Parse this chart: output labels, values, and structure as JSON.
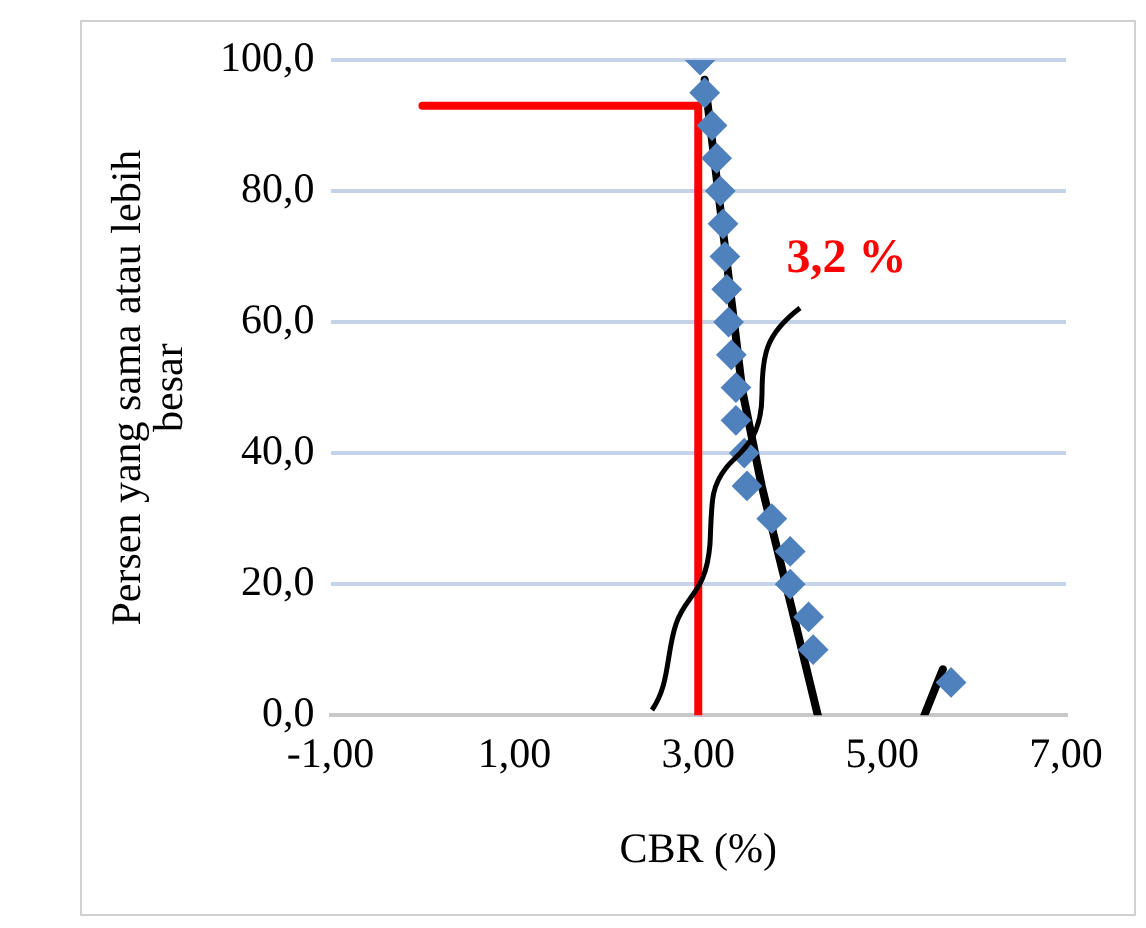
{
  "chart_data": {
    "type": "scatter",
    "xlabel": "CBR (%)",
    "ylabel": "Persen yang sama atau lebih besar",
    "xlim": [
      -1,
      7
    ],
    "xticks": [
      {
        "value": -1,
        "label": "-1,00"
      },
      {
        "value": 1,
        "label": "1,00"
      },
      {
        "value": 3,
        "label": "3,00"
      },
      {
        "value": 5,
        "label": "5,00"
      },
      {
        "value": 7,
        "label": "7,00"
      }
    ],
    "ylim": [
      0,
      100
    ],
    "yticks": [
      {
        "value": 0,
        "label": "0,0"
      },
      {
        "value": 20,
        "label": "20,0"
      },
      {
        "value": 40,
        "label": "40,0"
      },
      {
        "value": 60,
        "label": "60,0"
      },
      {
        "value": 80,
        "label": "80,0"
      },
      {
        "value": 100,
        "label": "100,0"
      }
    ],
    "grid": "y",
    "legend": false,
    "marker": "diamond",
    "annotations": [
      "3,2 %"
    ],
    "series": [
      {
        "color": "#4f81bd",
        "x": [
          3.02,
          3.07,
          3.15,
          3.2,
          3.24,
          3.27,
          3.29,
          3.31,
          3.33,
          3.36,
          3.41,
          3.41,
          3.5,
          3.53,
          3.8,
          4.0,
          4.0,
          4.2,
          4.25,
          5.75
        ],
        "values": [
          100,
          95,
          90,
          85,
          80,
          75,
          70,
          65,
          60,
          55,
          50,
          45,
          40,
          35,
          30,
          25,
          20,
          15,
          10,
          5
        ]
      },
      {
        "type": "line",
        "marker": "none",
        "color": "#000000",
        "x": [
          3.07,
          3.48,
          3.69,
          4.04,
          4.3
        ],
        "values": [
          97,
          49.5,
          35,
          15,
          0
        ]
      },
      {
        "type": "line",
        "marker": "none",
        "color": "#000000",
        "x": [
          5.46,
          5.66
        ],
        "values": [
          0,
          7
        ]
      },
      {
        "type": "line",
        "marker": "none",
        "color": "#ff0000",
        "x": [
          0,
          3,
          3
        ],
        "values": [
          93,
          93,
          0
        ]
      }
    ]
  }
}
